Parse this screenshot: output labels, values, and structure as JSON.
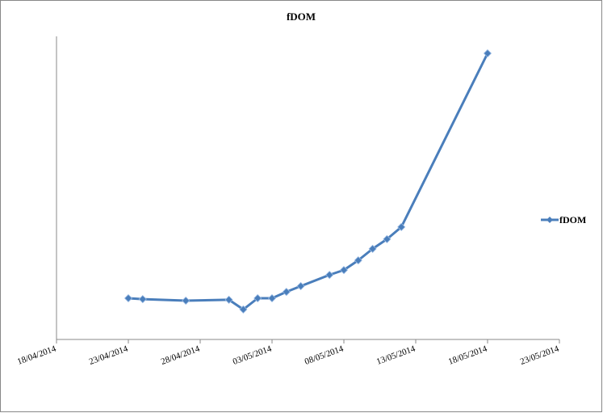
{
  "chart_data": {
    "type": "line",
    "title": "fDOM",
    "x": [
      "23/04/2014",
      "24/04/2014",
      "27/04/2014",
      "30/04/2014",
      "01/05/2014",
      "02/05/2014",
      "03/05/2014",
      "04/05/2014",
      "05/05/2014",
      "07/05/2014",
      "08/05/2014",
      "09/05/2014",
      "10/05/2014",
      "11/05/2014",
      "12/05/2014",
      "18/05/2014"
    ],
    "series": [
      {
        "name": "fDOM",
        "color": "#4a7ebb",
        "values": [
          13.6,
          13.3,
          12.8,
          13.1,
          9.9,
          13.6,
          13.6,
          15.7,
          17.6,
          21.3,
          22.9,
          26.1,
          29.9,
          33.1,
          37.1,
          94.4
        ]
      }
    ],
    "xlim": [
      "18/04/2014",
      "23/05/2014"
    ],
    "xticks": [
      "18/04/2014",
      "23/04/2014",
      "28/04/2014",
      "03/05/2014",
      "08/05/2014",
      "13/05/2014",
      "18/05/2014",
      "23/05/2014"
    ],
    "ylim": [
      0,
      100
    ],
    "legend": "right"
  }
}
